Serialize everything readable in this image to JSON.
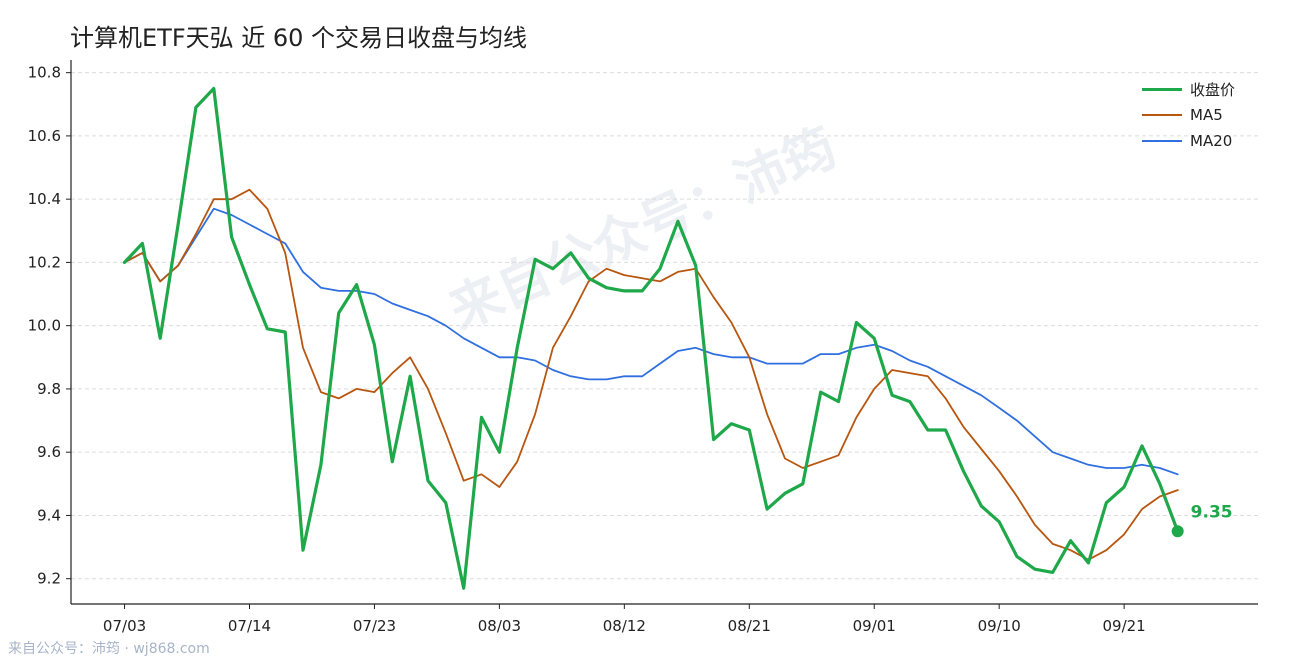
{
  "title": "计算机ETF天弘 近 60 个交易日收盘与均线",
  "footer": "来自公众号：沛筠 · wj868.com",
  "watermark": "来自公众号：沛筠",
  "colors": {
    "close": "#1fa84a",
    "ma5": "#b8560f",
    "ma20": "#2f6fe0",
    "grid": "#dcdcdc",
    "axis": "#222222"
  },
  "chart_data": {
    "type": "line",
    "title": "计算机ETF天弘 近 60 个交易日收盘与均线",
    "xlabel": "",
    "ylabel": "",
    "ylim": [
      9.12,
      10.84
    ],
    "yticks": [
      9.2,
      9.4,
      9.6,
      9.8,
      10.0,
      10.2,
      10.4,
      10.6,
      10.8
    ],
    "ytick_labels": [
      "9.2",
      "9.4",
      "9.6",
      "9.8",
      "10.0",
      "10.2",
      "10.4",
      "10.6",
      "10.8"
    ],
    "xlim": [
      -3,
      63.5
    ],
    "xticks": [
      {
        "index": 0,
        "label": "07/03"
      },
      {
        "index": 7,
        "label": "07/14"
      },
      {
        "index": 14,
        "label": "07/23"
      },
      {
        "index": 21,
        "label": "08/03"
      },
      {
        "index": 28,
        "label": "08/12"
      },
      {
        "index": 35,
        "label": "08/21"
      },
      {
        "index": 42,
        "label": "09/01"
      },
      {
        "index": 49,
        "label": "09/10"
      },
      {
        "index": 56,
        "label": "09/21"
      }
    ],
    "grid": "horizontal dashed",
    "legend_position": "top-right",
    "last_value_label": "9.35",
    "series": [
      {
        "name": "收盘价",
        "key": "close",
        "values": [
          10.2,
          10.26,
          9.96,
          10.32,
          10.69,
          10.75,
          10.28,
          10.13,
          9.99,
          9.98,
          9.29,
          9.56,
          10.04,
          10.13,
          9.94,
          9.57,
          9.84,
          9.51,
          9.44,
          9.17,
          9.71,
          9.6,
          9.93,
          10.21,
          10.18,
          10.23,
          10.15,
          10.12,
          10.11,
          10.11,
          10.18,
          10.33,
          10.19,
          9.64,
          9.69,
          9.67,
          9.42,
          9.47,
          9.5,
          9.79,
          9.76,
          10.01,
          9.96,
          9.78,
          9.76,
          9.67,
          9.67,
          9.54,
          9.43,
          9.38,
          9.27,
          9.23,
          9.22,
          9.32,
          9.25,
          9.44,
          9.49,
          9.62,
          9.5,
          9.35
        ]
      },
      {
        "name": "MA5",
        "key": "ma5",
        "values": [
          10.2,
          10.23,
          10.14,
          10.19,
          10.29,
          10.4,
          10.4,
          10.43,
          10.37,
          10.23,
          9.93,
          9.79,
          9.77,
          9.8,
          9.79,
          9.85,
          9.9,
          9.8,
          9.66,
          9.51,
          9.53,
          9.49,
          9.57,
          9.72,
          9.93,
          10.03,
          10.14,
          10.18,
          10.16,
          10.15,
          10.14,
          10.17,
          10.18,
          10.09,
          10.01,
          9.9,
          9.72,
          9.58,
          9.55,
          9.57,
          9.59,
          9.71,
          9.8,
          9.86,
          9.85,
          9.84,
          9.77,
          9.68,
          9.61,
          9.54,
          9.46,
          9.37,
          9.31,
          9.29,
          9.26,
          9.29,
          9.34,
          9.42,
          9.46,
          9.48
        ]
      },
      {
        "name": "MA20",
        "key": "ma20",
        "values": [
          10.2,
          10.23,
          10.14,
          10.19,
          10.28,
          10.37,
          10.35,
          10.32,
          10.29,
          10.26,
          10.17,
          10.12,
          10.11,
          10.11,
          10.1,
          10.07,
          10.05,
          10.03,
          10.0,
          9.96,
          9.93,
          9.9,
          9.9,
          9.89,
          9.86,
          9.84,
          9.83,
          9.83,
          9.84,
          9.84,
          9.88,
          9.92,
          9.93,
          9.91,
          9.9,
          9.9,
          9.88,
          9.88,
          9.88,
          9.91,
          9.91,
          9.93,
          9.94,
          9.92,
          9.89,
          9.87,
          9.84,
          9.81,
          9.78,
          9.74,
          9.7,
          9.65,
          9.6,
          9.58,
          9.56,
          9.55,
          9.55,
          9.56,
          9.55,
          9.53
        ]
      }
    ]
  }
}
